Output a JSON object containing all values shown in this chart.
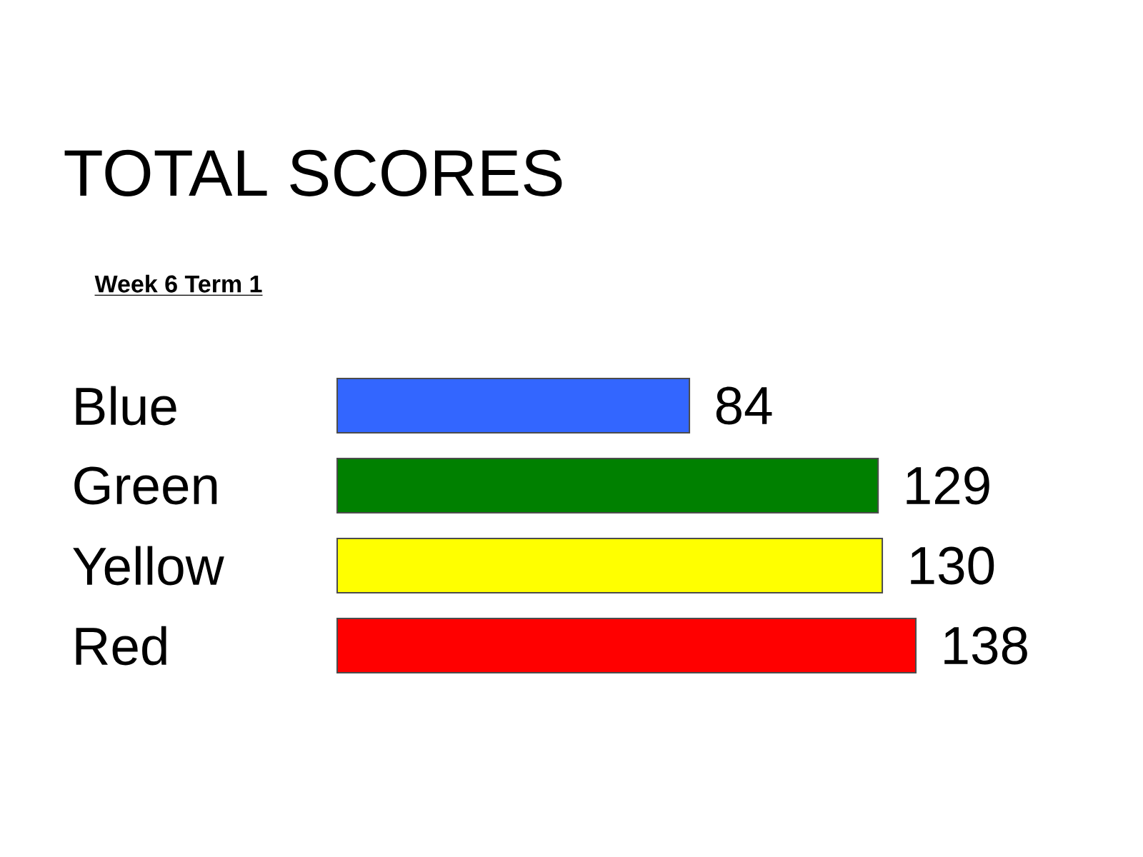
{
  "chart_data": {
    "type": "bar",
    "title": "TOTAL SCORES",
    "subtitle": "Week 6 Term 1",
    "orientation": "horizontal",
    "categories": [
      "Blue",
      "Green",
      "Yellow",
      "Red"
    ],
    "values": [
      84,
      129,
      130,
      138
    ],
    "colors": [
      "#3366ff",
      "#008000",
      "#ffff00",
      "#ff0000"
    ],
    "data_labels": true,
    "tick_labels": "y"
  }
}
